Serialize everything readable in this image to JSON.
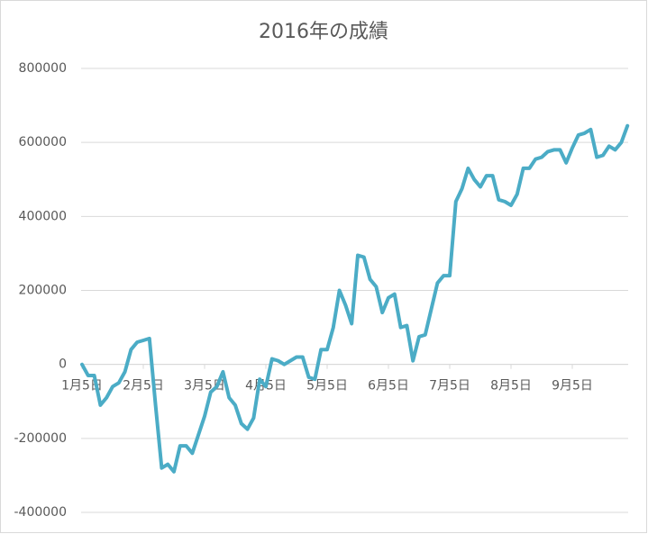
{
  "chart_data": {
    "type": "line",
    "title": "2016年の成績",
    "categories": [
      "1月5日",
      null,
      null,
      null,
      null,
      null,
      null,
      null,
      null,
      null,
      "2月5日",
      null,
      null,
      null,
      null,
      null,
      null,
      null,
      null,
      null,
      "3月5日",
      null,
      null,
      null,
      null,
      null,
      null,
      null,
      null,
      null,
      "4月5日",
      null,
      null,
      null,
      null,
      null,
      null,
      null,
      null,
      null,
      "5月5日",
      null,
      null,
      null,
      null,
      null,
      null,
      null,
      null,
      null,
      "6月5日",
      null,
      null,
      null,
      null,
      null,
      null,
      null,
      null,
      null,
      "7月5日",
      null,
      null,
      null,
      null,
      null,
      null,
      null,
      null,
      null,
      "8月5日",
      null,
      null,
      null,
      null,
      null,
      null,
      null,
      null,
      null,
      "9月5日",
      null,
      null,
      null,
      null,
      null,
      null,
      null,
      null,
      null
    ],
    "series": [
      {
        "color": "#4bacc6",
        "values": [
          0,
          -30000,
          -30000,
          -110000,
          -90000,
          -60000,
          -50000,
          -20000,
          40000,
          60000,
          65000,
          70000,
          -110000,
          -280000,
          -270000,
          -290000,
          -220000,
          -220000,
          -240000,
          -190000,
          -140000,
          -75000,
          -60000,
          -20000,
          -90000,
          -110000,
          -160000,
          -175000,
          -145000,
          -40000,
          -60000,
          15000,
          10000,
          0,
          10000,
          20000,
          20000,
          -35000,
          -40000,
          40000,
          40000,
          100000,
          200000,
          160000,
          110000,
          295000,
          290000,
          230000,
          210000,
          140000,
          180000,
          190000,
          100000,
          105000,
          10000,
          75000,
          80000,
          150000,
          220000,
          240000,
          240000,
          440000,
          475000,
          530000,
          500000,
          480000,
          510000,
          510000,
          445000,
          440000,
          430000,
          460000,
          530000,
          530000,
          555000,
          560000,
          575000,
          580000,
          580000,
          545000,
          585000,
          620000,
          625000,
          635000,
          560000,
          565000,
          590000,
          580000,
          600000,
          645000
        ]
      }
    ],
    "ylim": [
      -400000,
      800000
    ],
    "yticks": [
      -400000,
      -200000,
      0,
      200000,
      400000,
      600000,
      800000
    ],
    "grid": true
  }
}
